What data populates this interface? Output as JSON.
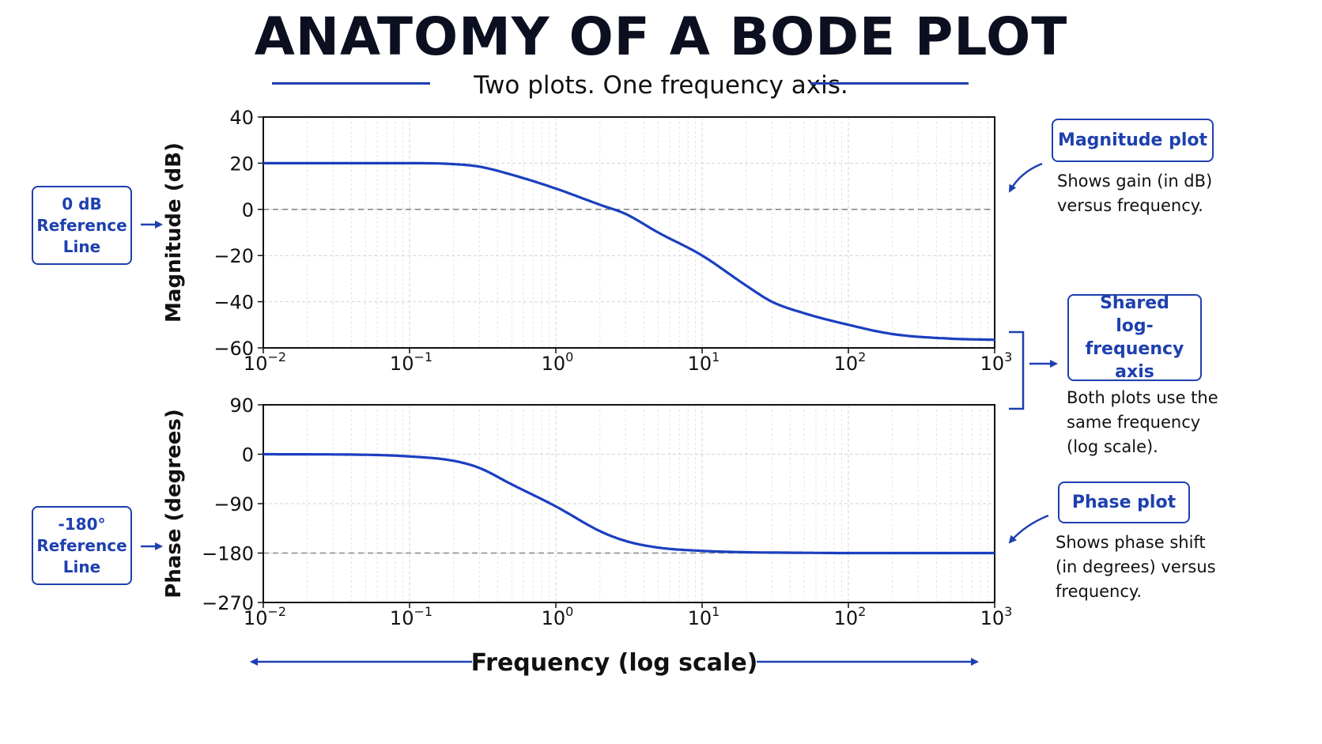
{
  "header": {
    "title": "ANATOMY OF A BODE PLOT",
    "subtitle": "Two plots. One frequency axis."
  },
  "callouts": {
    "zero_db": {
      "lines": [
        "0 dB",
        "Reference",
        "Line"
      ]
    },
    "minus180": {
      "lines": [
        "-180°",
        "Reference",
        "Line"
      ]
    },
    "magnitude": {
      "label": "Magnitude plot",
      "text_lines": [
        "Shows gain (in dB)",
        "versus frequency."
      ]
    },
    "shared": {
      "lines": [
        "Shared",
        "log-frequency",
        "axis"
      ],
      "text_lines": [
        "Both plots use the",
        "same frequency",
        "(log scale)."
      ]
    },
    "phase": {
      "label": "Phase plot",
      "text_lines": [
        "Shows phase shift",
        "(in degrees) versus",
        "frequency."
      ]
    }
  },
  "colors": {
    "accent": "#1e40af",
    "curve": "#1a3fbf",
    "reference_line": "#888888",
    "grid": "#d4d4d4"
  },
  "chart_data": [
    {
      "type": "line",
      "xscale": "log",
      "xlim": [
        0.01,
        1000
      ],
      "ylim": [
        -60,
        40
      ],
      "ylabel": "Magnitude (dB)",
      "x_ticks": [
        "10",
        "10",
        "10",
        "10",
        "10",
        "10"
      ],
      "x_tick_exponents": [
        "−2",
        "−1",
        "0",
        "1",
        "2",
        "3"
      ],
      "y_ticks": [
        "40",
        "20",
        "0",
        "−20",
        "−40",
        "−60"
      ],
      "y_tick_values": [
        40,
        20,
        0,
        -20,
        -40,
        -60
      ],
      "reference_line": 0,
      "grid": true,
      "series": [
        {
          "x": [
            0.01,
            0.05,
            0.1,
            0.2,
            0.3,
            0.5,
            1,
            2,
            3,
            5,
            10,
            20,
            30,
            50,
            100,
            200,
            500,
            1000
          ],
          "values": [
            20,
            20,
            20,
            19.6,
            18.5,
            15,
            9,
            2,
            -2,
            -10,
            -20,
            -33,
            -40,
            -45,
            -50,
            -54,
            -56,
            -56.5
          ]
        }
      ]
    },
    {
      "type": "line",
      "xscale": "log",
      "xlim": [
        0.01,
        1000
      ],
      "ylim": [
        -270,
        90
      ],
      "ylabel": "Phase (degrees)",
      "xlabel": "Frequency (log scale)",
      "x_ticks": [
        "10",
        "10",
        "10",
        "10",
        "10",
        "10"
      ],
      "x_tick_exponents": [
        "−2",
        "−1",
        "0",
        "1",
        "2",
        "3"
      ],
      "y_ticks": [
        "90",
        "0",
        "−90",
        "−180",
        "−270"
      ],
      "y_tick_values": [
        90,
        0,
        -90,
        -180,
        -270
      ],
      "reference_line": -180,
      "grid": true,
      "series": [
        {
          "x": [
            0.01,
            0.05,
            0.1,
            0.2,
            0.3,
            0.5,
            1,
            2,
            3,
            5,
            10,
            20,
            50,
            100,
            1000
          ],
          "values": [
            0,
            -1,
            -4,
            -12,
            -25,
            -55,
            -95,
            -140,
            -158,
            -170,
            -176,
            -178.5,
            -179.5,
            -180,
            -180
          ]
        }
      ]
    }
  ]
}
